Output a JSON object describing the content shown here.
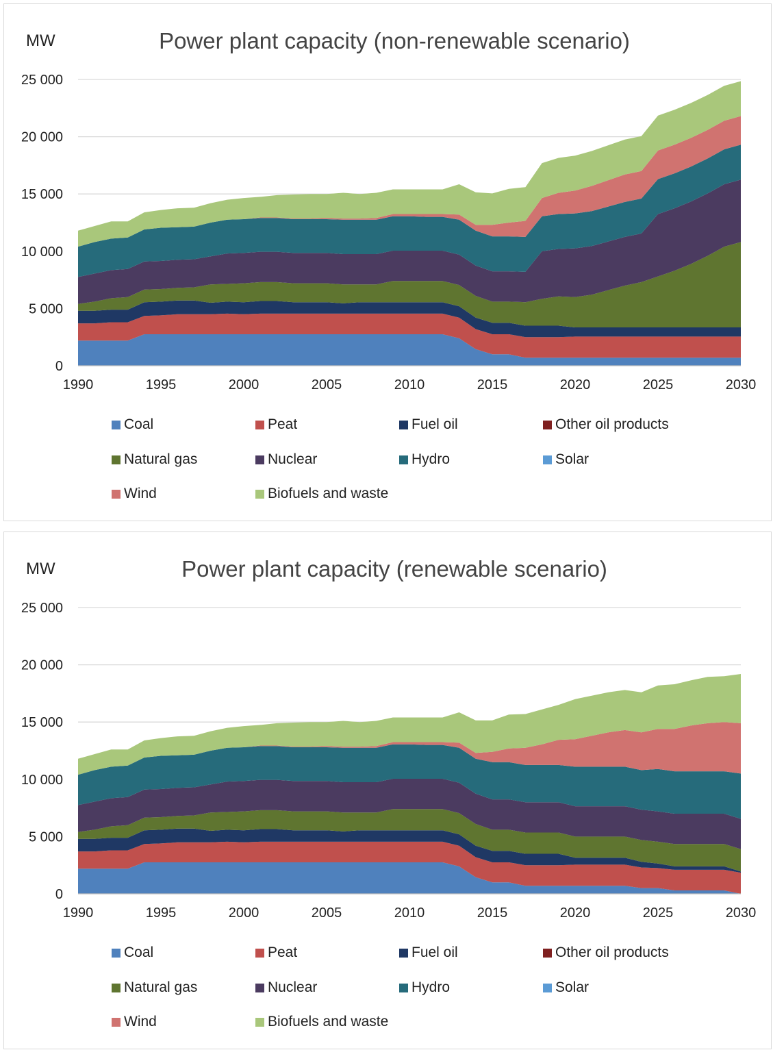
{
  "chart_data": [
    {
      "type": "area",
      "title": "Power plant capacity (non-renewable scenario)",
      "ylabel": "MW",
      "xlabel": "",
      "ylim": [
        0,
        25000
      ],
      "yticks": [
        "0",
        "5 000",
        "10 000",
        "15 000",
        "20 000",
        "25 000"
      ],
      "xticks": [
        "1990",
        "1995",
        "2000",
        "2005",
        "2010",
        "2015",
        "2020",
        "2025",
        "2030"
      ],
      "grid": true,
      "legend_position": "bottom",
      "x": [
        1990,
        1991,
        1992,
        1993,
        1994,
        1995,
        1996,
        1997,
        1998,
        1999,
        2000,
        2001,
        2002,
        2003,
        2004,
        2005,
        2006,
        2007,
        2008,
        2009,
        2010,
        2011,
        2012,
        2013,
        2014,
        2015,
        2016,
        2017,
        2018,
        2019,
        2020,
        2021,
        2022,
        2023,
        2024,
        2025,
        2026,
        2027,
        2028,
        2029,
        2030
      ],
      "series": [
        {
          "name": "Coal",
          "color": "#4f81bd",
          "values": [
            2200,
            2200,
            2200,
            2200,
            2750,
            2750,
            2750,
            2750,
            2750,
            2750,
            2750,
            2750,
            2750,
            2750,
            2750,
            2750,
            2750,
            2750,
            2750,
            2750,
            2750,
            2750,
            2750,
            2400,
            1450,
            1000,
            1000,
            700,
            700,
            700,
            700,
            700,
            700,
            700,
            700,
            700,
            700,
            700,
            700,
            700,
            700
          ]
        },
        {
          "name": "Peat",
          "color": "#c0504d",
          "values": [
            1500,
            1500,
            1600,
            1600,
            1600,
            1650,
            1750,
            1750,
            1750,
            1800,
            1750,
            1800,
            1800,
            1800,
            1800,
            1800,
            1800,
            1800,
            1800,
            1800,
            1800,
            1800,
            1800,
            1800,
            1750,
            1750,
            1750,
            1800,
            1800,
            1800,
            1850,
            1850,
            1850,
            1850,
            1850,
            1850,
            1850,
            1850,
            1850,
            1850,
            1850
          ]
        },
        {
          "name": "Fuel oil",
          "color": "#1f3864",
          "values": [
            1100,
            1100,
            1100,
            1100,
            1200,
            1200,
            1200,
            1200,
            1000,
            1050,
            1050,
            1100,
            1100,
            1000,
            1000,
            1000,
            900,
            1000,
            1000,
            1000,
            1000,
            1000,
            1000,
            1000,
            1000,
            1000,
            1000,
            1000,
            1000,
            1000,
            800,
            800,
            800,
            800,
            800,
            800,
            800,
            800,
            800,
            800,
            800
          ]
        },
        {
          "name": "Other oil products",
          "color": "#7f2020",
          "values": [
            0,
            0,
            0,
            0,
            0,
            0,
            0,
            0,
            0,
            0,
            0,
            0,
            0,
            0,
            0,
            0,
            0,
            0,
            0,
            0,
            0,
            0,
            0,
            0,
            0,
            0,
            0,
            0,
            0,
            0,
            0,
            0,
            0,
            0,
            0,
            0,
            0,
            0,
            0,
            0,
            0
          ]
        },
        {
          "name": "Natural gas",
          "color": "#5f7530",
          "values": [
            600,
            800,
            1000,
            1100,
            1100,
            1100,
            1100,
            1150,
            1600,
            1550,
            1650,
            1650,
            1650,
            1650,
            1650,
            1650,
            1650,
            1550,
            1550,
            1850,
            1850,
            1850,
            1850,
            1850,
            1900,
            1850,
            1850,
            2050,
            2350,
            2550,
            2650,
            2850,
            3250,
            3650,
            3950,
            4450,
            4950,
            5550,
            6250,
            7050,
            7450
          ]
        },
        {
          "name": "Nuclear",
          "color": "#4b3b60",
          "values": [
            2350,
            2450,
            2450,
            2450,
            2450,
            2450,
            2450,
            2450,
            2450,
            2650,
            2650,
            2650,
            2650,
            2650,
            2650,
            2650,
            2650,
            2650,
            2650,
            2650,
            2650,
            2650,
            2650,
            2650,
            2650,
            2650,
            2650,
            2650,
            4150,
            4150,
            4250,
            4250,
            4250,
            4250,
            4250,
            5450,
            5450,
            5450,
            5450,
            5450,
            5450
          ]
        },
        {
          "name": "Hydro",
          "color": "#266b7b",
          "values": [
            2650,
            2750,
            2750,
            2750,
            2800,
            2900,
            2850,
            2850,
            2950,
            2950,
            2950,
            2950,
            2950,
            2950,
            2950,
            2950,
            3000,
            3000,
            3000,
            3000,
            3000,
            2950,
            2950,
            3050,
            3050,
            3050,
            3050,
            3050,
            3050,
            3050,
            3050,
            3050,
            3050,
            3050,
            3050,
            3050,
            3050,
            3050,
            3050,
            3050,
            3050
          ]
        },
        {
          "name": "Solar",
          "color": "#5b9bd5",
          "values": [
            0,
            0,
            0,
            0,
            0,
            0,
            0,
            0,
            0,
            0,
            0,
            0,
            0,
            0,
            0,
            0,
            0,
            0,
            0,
            0,
            0,
            0,
            0,
            0,
            0,
            0,
            0,
            0,
            0,
            0,
            0,
            0,
            0,
            0,
            0,
            0,
            0,
            0,
            0,
            0,
            0
          ]
        },
        {
          "name": "Wind",
          "color": "#d07370",
          "values": [
            0,
            0,
            0,
            0,
            0,
            0,
            0,
            0,
            0,
            0,
            0,
            50,
            50,
            50,
            50,
            100,
            100,
            100,
            150,
            200,
            200,
            250,
            250,
            450,
            500,
            1000,
            1200,
            1400,
            1600,
            1850,
            2000,
            2200,
            2300,
            2400,
            2400,
            2500,
            2500,
            2500,
            2500,
            2500,
            2500
          ]
        },
        {
          "name": "Biofuels and waste",
          "color": "#a9c77b",
          "values": [
            1400,
            1400,
            1500,
            1400,
            1500,
            1550,
            1650,
            1650,
            1700,
            1750,
            1850,
            1800,
            1950,
            2100,
            2150,
            2100,
            2250,
            2150,
            2200,
            2150,
            2150,
            2150,
            2150,
            2650,
            2850,
            2750,
            2950,
            2950,
            3050,
            3050,
            3050,
            3050,
            3050,
            3050,
            3050,
            3050,
            3050,
            3050,
            3050,
            3050,
            3050
          ]
        }
      ]
    },
    {
      "type": "area",
      "title": "Power plant capacity (renewable scenario)",
      "ylabel": "MW",
      "xlabel": "",
      "ylim": [
        0,
        25000
      ],
      "yticks": [
        "0",
        "5 000",
        "10 000",
        "15 000",
        "20 000",
        "25 000"
      ],
      "xticks": [
        "1990",
        "1995",
        "2000",
        "2005",
        "2010",
        "2015",
        "2020",
        "2025",
        "2030"
      ],
      "grid": true,
      "legend_position": "bottom",
      "x": [
        1990,
        1991,
        1992,
        1993,
        1994,
        1995,
        1996,
        1997,
        1998,
        1999,
        2000,
        2001,
        2002,
        2003,
        2004,
        2005,
        2006,
        2007,
        2008,
        2009,
        2010,
        2011,
        2012,
        2013,
        2014,
        2015,
        2016,
        2017,
        2018,
        2019,
        2020,
        2021,
        2022,
        2023,
        2024,
        2025,
        2026,
        2027,
        2028,
        2029,
        2030
      ],
      "series": [
        {
          "name": "Coal",
          "color": "#4f81bd",
          "values": [
            2200,
            2200,
            2200,
            2200,
            2750,
            2750,
            2750,
            2750,
            2750,
            2750,
            2750,
            2750,
            2750,
            2750,
            2750,
            2750,
            2750,
            2750,
            2750,
            2750,
            2750,
            2750,
            2750,
            2400,
            1450,
            1000,
            1000,
            700,
            700,
            700,
            700,
            700,
            700,
            700,
            500,
            500,
            300,
            300,
            300,
            300,
            0
          ]
        },
        {
          "name": "Peat",
          "color": "#c0504d",
          "values": [
            1500,
            1500,
            1600,
            1600,
            1600,
            1650,
            1750,
            1750,
            1750,
            1800,
            1750,
            1800,
            1800,
            1800,
            1800,
            1800,
            1800,
            1800,
            1800,
            1800,
            1800,
            1800,
            1800,
            1800,
            1750,
            1750,
            1750,
            1800,
            1800,
            1800,
            1850,
            1850,
            1850,
            1850,
            1800,
            1750,
            1800,
            1800,
            1800,
            1800,
            1850
          ]
        },
        {
          "name": "Fuel oil",
          "color": "#1f3864",
          "values": [
            1100,
            1100,
            1100,
            1100,
            1200,
            1200,
            1200,
            1200,
            1000,
            1050,
            1050,
            1100,
            1100,
            1000,
            1000,
            1000,
            900,
            1000,
            1000,
            1000,
            1000,
            1000,
            1000,
            1000,
            1000,
            1000,
            1000,
            1000,
            1000,
            1000,
            600,
            600,
            600,
            600,
            500,
            400,
            300,
            300,
            300,
            300,
            100
          ]
        },
        {
          "name": "Other oil products",
          "color": "#7f2020",
          "values": [
            0,
            0,
            0,
            0,
            0,
            0,
            0,
            0,
            0,
            0,
            0,
            0,
            0,
            0,
            0,
            0,
            0,
            0,
            0,
            0,
            0,
            0,
            0,
            0,
            0,
            0,
            0,
            0,
            0,
            0,
            0,
            0,
            0,
            0,
            0,
            0,
            0,
            0,
            0,
            0,
            0
          ]
        },
        {
          "name": "Natural gas",
          "color": "#5f7530",
          "values": [
            600,
            800,
            1000,
            1100,
            1100,
            1100,
            1100,
            1150,
            1600,
            1550,
            1650,
            1650,
            1650,
            1650,
            1650,
            1650,
            1650,
            1550,
            1550,
            1850,
            1850,
            1850,
            1850,
            1850,
            1900,
            1850,
            1850,
            1850,
            1850,
            1850,
            1850,
            1850,
            1850,
            1850,
            1900,
            1900,
            1950,
            1950,
            1950,
            1950,
            1950
          ]
        },
        {
          "name": "Nuclear",
          "color": "#4b3b60",
          "values": [
            2350,
            2450,
            2450,
            2450,
            2450,
            2450,
            2450,
            2450,
            2450,
            2650,
            2650,
            2650,
            2650,
            2650,
            2650,
            2650,
            2650,
            2650,
            2650,
            2650,
            2650,
            2650,
            2650,
            2650,
            2650,
            2650,
            2650,
            2650,
            2650,
            2650,
            2650,
            2650,
            2650,
            2650,
            2650,
            2650,
            2650,
            2650,
            2650,
            2650,
            2650
          ]
        },
        {
          "name": "Hydro",
          "color": "#266b7b",
          "values": [
            2650,
            2750,
            2750,
            2750,
            2800,
            2900,
            2850,
            2850,
            2950,
            2950,
            2950,
            2950,
            2950,
            2950,
            2950,
            2950,
            3000,
            3000,
            3000,
            3000,
            3000,
            2950,
            2950,
            3050,
            3050,
            3250,
            3250,
            3250,
            3250,
            3250,
            3450,
            3450,
            3450,
            3450,
            3450,
            3700,
            3700,
            3700,
            3700,
            3700,
            3950
          ]
        },
        {
          "name": "Solar",
          "color": "#5b9bd5",
          "values": [
            0,
            0,
            0,
            0,
            0,
            0,
            0,
            0,
            0,
            0,
            0,
            0,
            0,
            0,
            0,
            0,
            0,
            0,
            0,
            0,
            0,
            0,
            0,
            0,
            0,
            0,
            0,
            0,
            0,
            0,
            0,
            0,
            0,
            0,
            0,
            0,
            0,
            0,
            0,
            0,
            0
          ]
        },
        {
          "name": "Wind",
          "color": "#d07370",
          "values": [
            0,
            0,
            0,
            0,
            0,
            0,
            0,
            0,
            0,
            0,
            0,
            50,
            50,
            50,
            50,
            100,
            100,
            100,
            150,
            200,
            200,
            250,
            250,
            450,
            500,
            900,
            1200,
            1500,
            1800,
            2200,
            2400,
            2700,
            3000,
            3200,
            3300,
            3500,
            3700,
            4000,
            4200,
            4300,
            4400
          ]
        },
        {
          "name": "Biofuels and waste",
          "color": "#a9c77b",
          "values": [
            1400,
            1400,
            1500,
            1400,
            1500,
            1550,
            1650,
            1650,
            1700,
            1750,
            1850,
            1800,
            1950,
            2100,
            2150,
            2100,
            2250,
            2150,
            2200,
            2150,
            2150,
            2150,
            2150,
            2650,
            2850,
            2750,
            2950,
            2950,
            3050,
            3050,
            3500,
            3500,
            3500,
            3500,
            3500,
            3800,
            3900,
            3950,
            4050,
            4000,
            4300
          ]
        }
      ]
    }
  ]
}
